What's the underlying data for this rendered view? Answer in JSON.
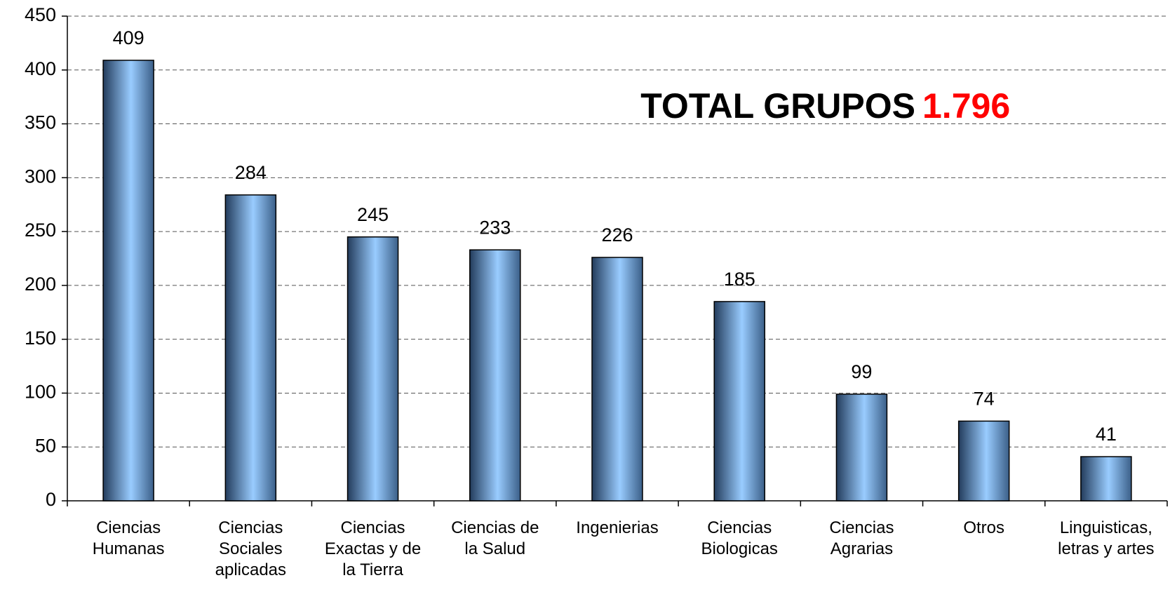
{
  "chart_data": {
    "type": "bar",
    "annotation": {
      "text": "TOTAL GRUPOS",
      "highlight": "1.796",
      "highlight_color": "#ff0000"
    },
    "categories": [
      "Ciencias Humanas",
      "Ciencias Sociales aplicadas",
      "Ciencias Exactas y de la Tierra",
      "Ciencias de la Salud",
      "Ingenierias",
      "Ciencias Biologicas",
      "Ciencias Agrarias",
      "Otros",
      "Linguisticas, letras y artes"
    ],
    "values": [
      409,
      284,
      245,
      233,
      226,
      185,
      99,
      74,
      41
    ],
    "color": "#99ccff",
    "ylim": [
      0,
      450
    ],
    "yticks": [
      0,
      50,
      100,
      150,
      200,
      250,
      300,
      350,
      400,
      450
    ],
    "grid": true
  }
}
